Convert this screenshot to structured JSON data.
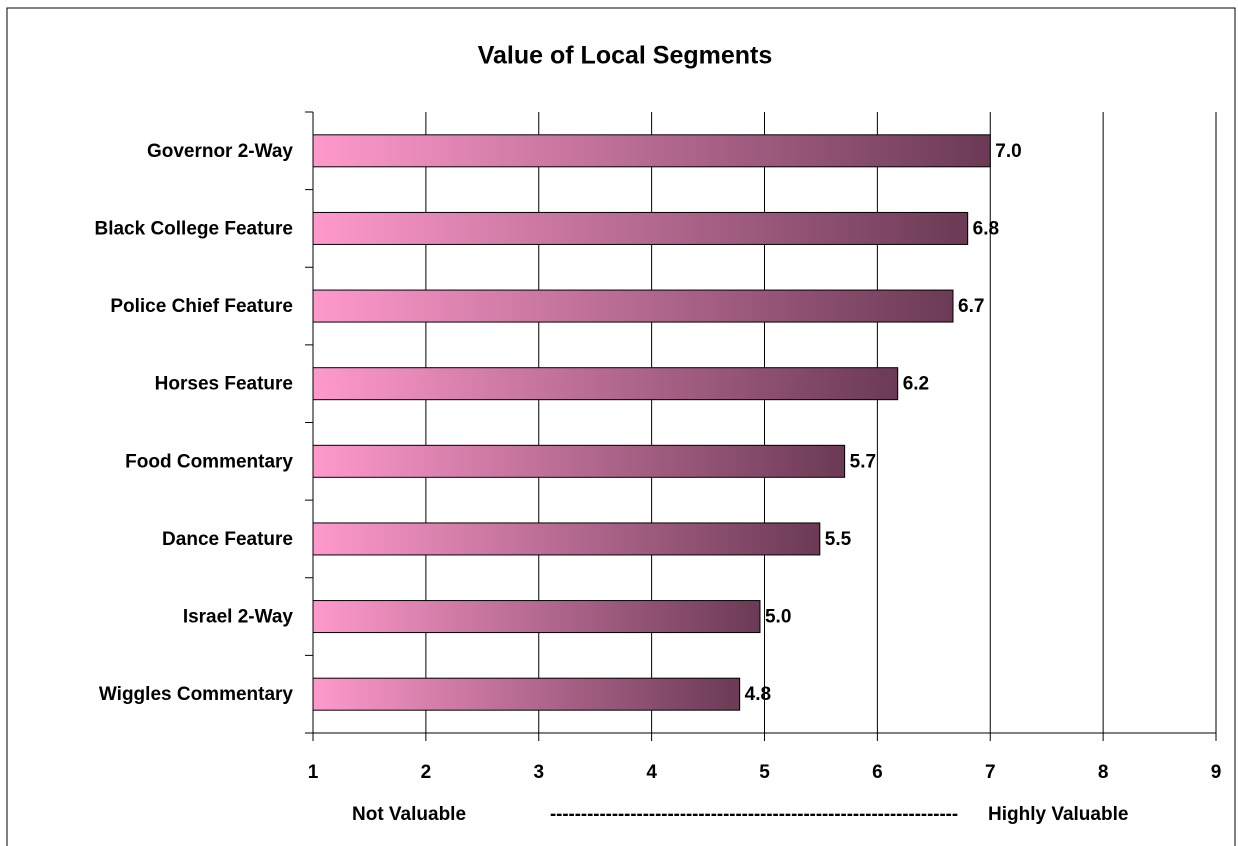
{
  "chart_data": {
    "type": "hbar",
    "title": "Value of Local Segments",
    "categories": [
      "Governor 2-Way",
      "Black College Feature",
      "Police Chief Feature",
      "Horses Feature",
      "Food Commentary",
      "Dance Feature",
      "Israel 2-Way",
      "Wiggles Commentary"
    ],
    "values": [
      7.0,
      6.8,
      6.67,
      6.18,
      5.71,
      5.49,
      4.96,
      4.78
    ],
    "value_labels": [
      "7.0",
      "6.8",
      "6.7",
      "6.2",
      "5.7",
      "5.5",
      "5.0",
      "4.8"
    ],
    "color": "#ff99cc",
    "gradient_end": "#6b3a55",
    "xlim": [
      1,
      9
    ],
    "xticks": [
      1,
      2,
      3,
      4,
      5,
      6,
      7,
      8,
      9
    ],
    "grid": true,
    "annotations": [
      "Not Valuable",
      "------------------------------------------------------------------",
      "Highly Valuable"
    ]
  }
}
